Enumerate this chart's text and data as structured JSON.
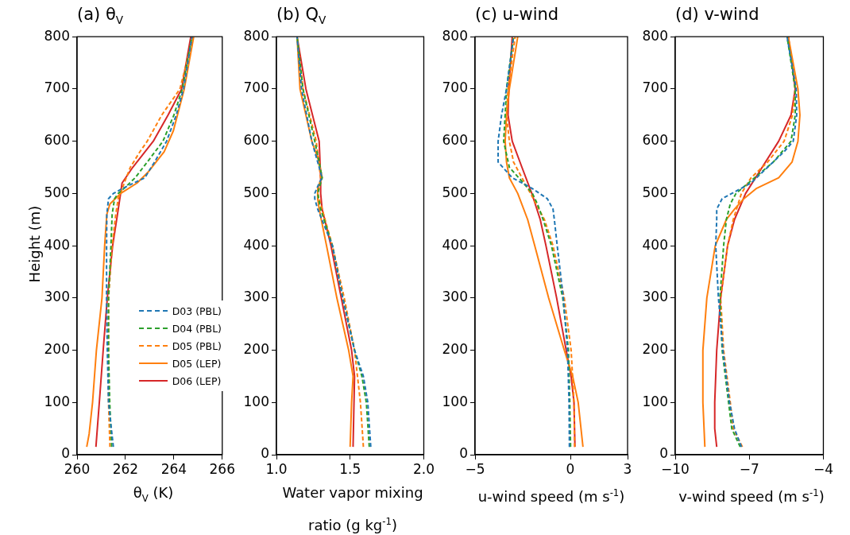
{
  "chart_data": [
    {
      "type": "line",
      "title": "(a) θ$_{V}$",
      "xlabel": "θ$_{V}$ (K)",
      "ylabel": "Height (m)",
      "xlim": [
        260,
        266
      ],
      "xticks": [
        260,
        262,
        264,
        266
      ],
      "ylim": [
        0,
        800
      ],
      "yticks": [
        0,
        100,
        200,
        300,
        400,
        500,
        600,
        700,
        800
      ],
      "grid": false,
      "legend": "lower right",
      "series": [
        {
          "name": "D03 (PBL)",
          "color": "#1f77b4",
          "line_style": "dashed",
          "x": [
            261.5,
            261.3,
            261.25,
            261.22,
            261.22,
            261.23,
            261.3,
            261.5,
            261.9,
            262.8,
            263.2,
            263.7,
            264.1,
            264.4,
            264.75
          ],
          "values": [
            15,
            100,
            200,
            300,
            400,
            460,
            490,
            500,
            510,
            530,
            560,
            600,
            650,
            700,
            800
          ]
        },
        {
          "name": "D04 (PBL)",
          "color": "#2ca02c",
          "line_style": "dashed",
          "x": [
            261.43,
            261.35,
            261.3,
            261.3,
            261.4,
            261.45,
            261.55,
            261.7,
            261.95,
            262.4,
            262.9,
            263.55,
            264.0,
            264.35,
            264.75
          ],
          "values": [
            15,
            100,
            200,
            300,
            400,
            460,
            490,
            500,
            510,
            530,
            560,
            600,
            650,
            700,
            800
          ]
        },
        {
          "name": "D05 (PBL)",
          "color": "#ff7f0e",
          "line_style": "dashed",
          "x": [
            261.36,
            261.3,
            261.3,
            261.3,
            261.45,
            261.6,
            261.7,
            261.8,
            261.95,
            262.2,
            262.6,
            262.9,
            263.5,
            264.25,
            264.8
          ],
          "values": [
            15,
            100,
            200,
            300,
            400,
            460,
            490,
            500,
            520,
            550,
            580,
            600,
            650,
            700,
            800
          ]
        },
        {
          "name": "D05 (LEP)",
          "color": "#ff7f0e",
          "line_style": "solid",
          "x": [
            260.4,
            260.5,
            260.64,
            260.8,
            261.03,
            261.14,
            261.23,
            261.36,
            261.8,
            262.48,
            262.92,
            263.6,
            263.98,
            264.43,
            264.82
          ],
          "values": [
            15,
            40,
            100,
            200,
            300,
            400,
            460,
            480,
            500,
            520,
            540,
            580,
            620,
            700,
            800
          ]
        },
        {
          "name": "D06 (LEP)",
          "color": "#d62728",
          "line_style": "solid",
          "x": [
            260.78,
            260.92,
            261.08,
            261.25,
            261.47,
            261.67,
            261.8,
            261.86,
            262.3,
            263.15,
            263.76,
            264.32,
            264.7
          ],
          "values": [
            15,
            100,
            200,
            300,
            400,
            460,
            500,
            520,
            550,
            600,
            650,
            700,
            800
          ]
        }
      ]
    },
    {
      "type": "line",
      "title": "(b) Q$_{V}$",
      "xlabel": "Water vapor mixing ratio (g kg$^{-1}$)",
      "xlim": [
        1.0,
        2.0
      ],
      "xticks": [
        {
          "value": 1,
          "label": "1.0"
        },
        1.5,
        {
          "value": 2,
          "label": "2.0"
        }
      ],
      "ylim": [
        0,
        800
      ],
      "yticks": [
        0,
        100,
        200,
        300,
        400,
        500,
        600,
        700,
        800
      ],
      "grid": false,
      "series": [
        {
          "color": "#1f77b4",
          "line_style": "dashed",
          "x": [
            1.64,
            1.62,
            1.59,
            1.53,
            1.45,
            1.38,
            1.28,
            1.26,
            1.26,
            1.29,
            1.31,
            1.28,
            1.24,
            1.17,
            1.14
          ],
          "values": [
            15,
            100,
            150,
            200,
            300,
            400,
            470,
            490,
            500,
            520,
            530,
            560,
            600,
            700,
            800
          ]
        },
        {
          "color": "#2ca02c",
          "line_style": "dashed",
          "x": [
            1.63,
            1.61,
            1.58,
            1.53,
            1.45,
            1.38,
            1.3,
            1.28,
            1.31,
            1.29,
            1.26,
            1.18,
            1.14
          ],
          "values": [
            15,
            100,
            150,
            200,
            300,
            400,
            470,
            500,
            530,
            560,
            600,
            700,
            800
          ]
        },
        {
          "color": "#ff7f0e",
          "line_style": "dashed",
          "x": [
            1.59,
            1.57,
            1.55,
            1.53,
            1.46,
            1.38,
            1.28,
            1.3,
            1.27,
            1.18,
            1.14
          ],
          "values": [
            15,
            100,
            150,
            200,
            300,
            400,
            500,
            530,
            600,
            700,
            800
          ]
        },
        {
          "color": "#ff7f0e",
          "line_style": "solid",
          "x": [
            1.5,
            1.51,
            1.52,
            1.49,
            1.41,
            1.34,
            1.29,
            1.28,
            1.28,
            1.31,
            1.29,
            1.24,
            1.16,
            1.14
          ],
          "values": [
            15,
            100,
            150,
            200,
            300,
            400,
            470,
            490,
            510,
            530,
            560,
            600,
            700,
            800
          ]
        },
        {
          "color": "#d62728",
          "line_style": "solid",
          "x": [
            1.52,
            1.53,
            1.51,
            1.44,
            1.37,
            1.31,
            1.3,
            1.3,
            1.29,
            1.2,
            1.14
          ],
          "values": [
            15,
            150,
            200,
            300,
            400,
            470,
            500,
            530,
            600,
            700,
            800
          ]
        }
      ]
    },
    {
      "type": "line",
      "title": "(c) u-wind",
      "xlabel": "u-wind speed (m s$^{-1}$)",
      "xlim": [
        -5,
        3
      ],
      "xticks": [
        -5,
        0,
        3
      ],
      "ylim": [
        0,
        800
      ],
      "yticks": [
        0,
        100,
        200,
        300,
        400,
        500,
        600,
        700,
        800
      ],
      "grid": false,
      "series": [
        {
          "color": "#1f77b4",
          "line_style": "dashed",
          "x": [
            -0.05,
            -0.07,
            -0.15,
            -0.37,
            -0.69,
            -0.84,
            -0.91,
            -1.21,
            -2.02,
            -3.05,
            -3.79,
            -3.79,
            -3.61,
            -3.35,
            -2.98
          ],
          "values": [
            15,
            100,
            200,
            300,
            400,
            450,
            470,
            490,
            510,
            530,
            560,
            600,
            650,
            700,
            800
          ]
        },
        {
          "color": "#2ca02c",
          "line_style": "dashed",
          "x": [
            0.01,
            -0.03,
            -0.1,
            -0.4,
            -0.99,
            -1.43,
            -1.73,
            -1.99,
            -2.46,
            -3.2,
            -3.5,
            -3.42,
            -3.35,
            -2.98
          ],
          "values": [
            15,
            100,
            200,
            300,
            400,
            450,
            480,
            500,
            520,
            550,
            600,
            650,
            700,
            800
          ]
        },
        {
          "color": "#ff7f0e",
          "line_style": "dashed",
          "x": [
            0.22,
            0.19,
            0.04,
            -0.32,
            -0.91,
            -1.36,
            -2.09,
            -2.54,
            -2.98,
            -3.2,
            -3.35,
            -3.27,
            -2.9
          ],
          "values": [
            15,
            100,
            200,
            300,
            400,
            450,
            500,
            530,
            560,
            600,
            650,
            700,
            800
          ]
        },
        {
          "color": "#ff7f0e",
          "line_style": "solid",
          "x": [
            0.66,
            0.41,
            0.12,
            -0.32,
            -1.14,
            -1.87,
            -2.24,
            -2.76,
            -3.2,
            -3.35,
            -3.42,
            -3.35,
            -3.2,
            -2.76
          ],
          "values": [
            15,
            100,
            150,
            200,
            300,
            400,
            450,
            500,
            530,
            560,
            600,
            650,
            700,
            800
          ]
        },
        {
          "color": "#d62728",
          "line_style": "solid",
          "x": [
            0.24,
            0.19,
            0.04,
            -0.22,
            -0.72,
            -1.28,
            -1.58,
            -2.02,
            -2.54,
            -3.05,
            -3.27,
            -3.23,
            -3.05
          ],
          "values": [
            15,
            100,
            150,
            200,
            300,
            400,
            450,
            500,
            550,
            600,
            650,
            700,
            800
          ]
        }
      ]
    },
    {
      "type": "line",
      "title": "(d) v-wind",
      "xlabel": "v-wind speed (m s$^{-1}$)",
      "xlim": [
        -10,
        -4
      ],
      "xticks": [
        -10,
        -7,
        -4
      ],
      "ylim": [
        0,
        800
      ],
      "yticks": [
        0,
        100,
        200,
        300,
        400,
        500,
        600,
        700,
        800
      ],
      "grid": false,
      "series": [
        {
          "color": "#1f77b4",
          "line_style": "dashed",
          "x": [
            -7.32,
            -7.6,
            -7.8,
            -8.07,
            -8.25,
            -8.36,
            -8.32,
            -8.32,
            -8.1,
            -7.71,
            -6.93,
            -6.26,
            -5.59,
            -5.22,
            -5.08,
            -5.1,
            -5.47
          ],
          "values": [
            15,
            50,
            100,
            200,
            300,
            400,
            450,
            470,
            490,
            500,
            520,
            550,
            580,
            600,
            650,
            700,
            800
          ]
        },
        {
          "color": "#2ca02c",
          "line_style": "dashed",
          "x": [
            -7.37,
            -7.71,
            -7.84,
            -8.1,
            -8.19,
            -8.04,
            -7.93,
            -7.77,
            -7.54,
            -7.04,
            -6.03,
            -5.31,
            -5.14,
            -5.14,
            -5.47
          ],
          "values": [
            15,
            50,
            100,
            200,
            300,
            400,
            450,
            480,
            500,
            520,
            560,
            600,
            650,
            700,
            800
          ]
        },
        {
          "color": "#ff7f0e",
          "line_style": "dashed",
          "x": [
            -7.28,
            -7.65,
            -7.77,
            -8.04,
            -8.16,
            -7.88,
            -7.65,
            -7.32,
            -6.93,
            -6.26,
            -5.59,
            -5.25,
            -5.14,
            -5.42
          ],
          "values": [
            15,
            50,
            100,
            200,
            300,
            400,
            450,
            500,
            530,
            560,
            600,
            650,
            700,
            800
          ]
        },
        {
          "color": "#ff7f0e",
          "line_style": "solid",
          "x": [
            -8.8,
            -8.88,
            -8.88,
            -8.72,
            -8.38,
            -7.93,
            -7.6,
            -7.22,
            -6.7,
            -5.81,
            -5.27,
            -5.03,
            -4.95,
            -5.03,
            -5.42
          ],
          "values": [
            15,
            100,
            200,
            300,
            400,
            450,
            470,
            490,
            510,
            530,
            560,
            600,
            650,
            700,
            800
          ]
        },
        {
          "color": "#d62728",
          "line_style": "solid",
          "x": [
            -8.32,
            -8.4,
            -8.4,
            -8.32,
            -8.16,
            -7.88,
            -7.6,
            -7.15,
            -6.48,
            -5.81,
            -5.31,
            -5.14,
            -5.42
          ],
          "values": [
            15,
            50,
            100,
            200,
            300,
            400,
            450,
            500,
            550,
            600,
            650,
            700,
            800
          ]
        }
      ]
    }
  ]
}
